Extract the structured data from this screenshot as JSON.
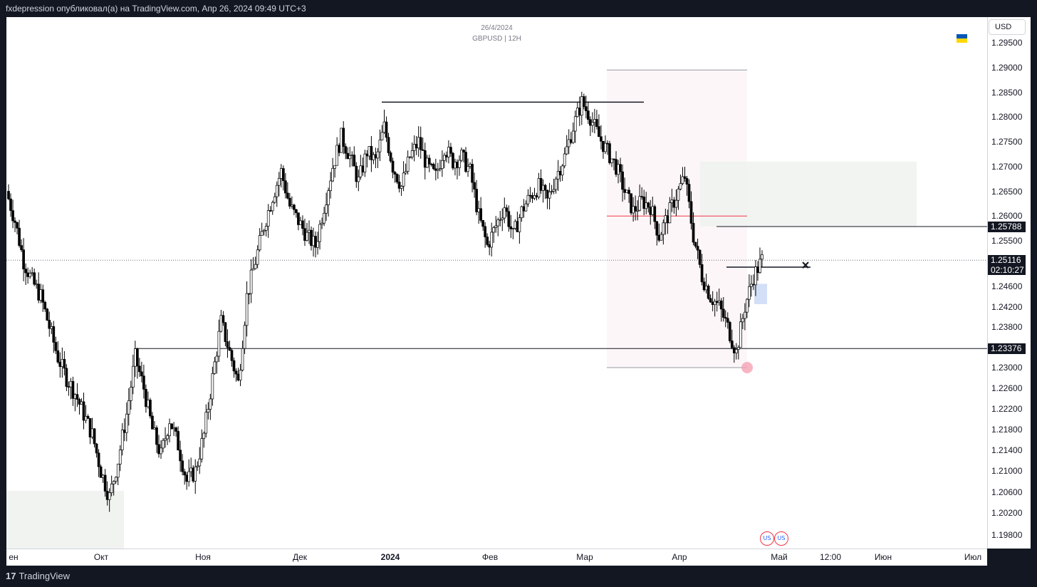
{
  "header": {
    "publication": "fxdepression опубликовал(а) на TradingView.com, Апр 26, 2024 09:49 UTC+3"
  },
  "chart_header": {
    "date": "26/4/2024",
    "symbol": "GBPUSD | 12H"
  },
  "price_axis": {
    "currency": "USD",
    "ticks": [
      "1.29500",
      "1.29000",
      "1.28500",
      "1.28000",
      "1.27500",
      "1.27000",
      "1.26500",
      "1.26000",
      "1.25500",
      "1.24600",
      "1.24200",
      "1.23800",
      "1.23000",
      "1.22600",
      "1.22200",
      "1.21800",
      "1.21400",
      "1.21000",
      "1.20600",
      "1.20200",
      "1.19800"
    ],
    "labels": [
      {
        "name": "level-high",
        "value": "1.25788"
      },
      {
        "name": "current-price",
        "value": "1.25116"
      },
      {
        "name": "level-low",
        "value": "1.23376"
      }
    ],
    "countdown": "02:10:27"
  },
  "time_axis": {
    "ticks": [
      "ен",
      "Окт",
      "Ноя",
      "Дек",
      "2024",
      "Фев",
      "Мар",
      "Апр",
      "Май",
      "12:00",
      "Июн",
      "Июл"
    ]
  },
  "events": [
    "US",
    "US"
  ],
  "footer": {
    "logo_mark": "17",
    "logo_text": "TradingView"
  },
  "chart_data": {
    "type": "candlestick",
    "symbol": "GBPUSD",
    "interval": "12H",
    "y_scale": "piecewise",
    "ylim": [
      1.194,
      1.2995
    ],
    "x_ticks": [
      "ен",
      "Окт",
      "Ноя",
      "Дек",
      "2024",
      "Фев",
      "Мар",
      "Апр",
      "Май",
      "12:00",
      "Июн",
      "Июл"
    ],
    "ohlc_trace": [
      [
        "Sep",
        1.265
      ],
      [
        "Sep",
        1.259
      ],
      [
        "Sep",
        1.251
      ],
      [
        "Sep",
        1.247
      ],
      [
        "Sep",
        1.244
      ],
      [
        "Sep",
        1.238
      ],
      [
        "Sep",
        1.232
      ],
      [
        "Sep",
        1.228
      ],
      [
        "Sep",
        1.225
      ],
      [
        "Sep",
        1.221
      ],
      [
        "Sep",
        1.217
      ],
      [
        "Oct",
        1.21
      ],
      [
        "Oct",
        1.205
      ],
      [
        "Oct",
        1.212
      ],
      [
        "Oct",
        1.221
      ],
      [
        "Oct",
        1.232
      ],
      [
        "Oct",
        1.226
      ],
      [
        "Oct",
        1.218
      ],
      [
        "Oct",
        1.213
      ],
      [
        "Oct",
        1.22
      ],
      [
        "Oct",
        1.215
      ],
      [
        "Oct",
        1.208
      ],
      [
        "Oct",
        1.21
      ],
      [
        "Nov",
        1.217
      ],
      [
        "Nov",
        1.228
      ],
      [
        "Nov",
        1.239
      ],
      [
        "Nov",
        1.233
      ],
      [
        "Nov",
        1.227
      ],
      [
        "Nov",
        1.244
      ],
      [
        "Nov",
        1.251
      ],
      [
        "Nov",
        1.258
      ],
      [
        "Nov",
        1.264
      ],
      [
        "Nov",
        1.269
      ],
      [
        "Nov",
        1.262
      ],
      [
        "Dec",
        1.259
      ],
      [
        "Dec",
        1.256
      ],
      [
        "Dec",
        1.254
      ],
      [
        "Dec",
        1.262
      ],
      [
        "Dec",
        1.27
      ],
      [
        "Dec",
        1.276
      ],
      [
        "Dec",
        1.272
      ],
      [
        "Dec",
        1.267
      ],
      [
        "Dec",
        1.273
      ],
      [
        "Dec",
        1.271
      ],
      [
        "Jan",
        1.278
      ],
      [
        "Jan",
        1.27
      ],
      [
        "Jan",
        1.266
      ],
      [
        "Jan",
        1.272
      ],
      [
        "Jan",
        1.275
      ],
      [
        "Jan",
        1.27
      ],
      [
        "Jan",
        1.268
      ],
      [
        "Jan",
        1.274
      ],
      [
        "Jan",
        1.271
      ],
      [
        "Jan",
        1.272
      ],
      [
        "Feb",
        1.269
      ],
      [
        "Feb",
        1.26
      ],
      [
        "Feb",
        1.254
      ],
      [
        "Feb",
        1.258
      ],
      [
        "Feb",
        1.262
      ],
      [
        "Feb",
        1.256
      ],
      [
        "Feb",
        1.261
      ],
      [
        "Feb",
        1.264
      ],
      [
        "Feb",
        1.266
      ],
      [
        "Feb",
        1.263
      ],
      [
        "Mar",
        1.268
      ],
      [
        "Mar",
        1.272
      ],
      [
        "Mar",
        1.278
      ],
      [
        "Mar",
        1.283
      ],
      [
        "Mar",
        1.28
      ],
      [
        "Mar",
        1.276
      ],
      [
        "Mar",
        1.273
      ],
      [
        "Mar",
        1.27
      ],
      [
        "Mar",
        1.265
      ],
      [
        "Mar",
        1.261
      ],
      [
        "Apr",
        1.263
      ],
      [
        "Apr",
        1.262
      ],
      [
        "Apr",
        1.256
      ],
      [
        "Apr",
        1.26
      ],
      [
        "Apr",
        1.264
      ],
      [
        "Apr",
        1.268
      ],
      [
        "Apr",
        1.256
      ],
      [
        "Apr",
        1.248
      ],
      [
        "Apr",
        1.244
      ],
      [
        "Apr",
        1.242
      ],
      [
        "Apr",
        1.238
      ],
      [
        "Apr",
        1.233
      ],
      [
        "Apr",
        1.242
      ],
      [
        "Apr",
        1.248
      ],
      [
        "Apr",
        1.2512
      ]
    ],
    "annotations": [
      {
        "type": "horizontal",
        "label": "1.25788"
      },
      {
        "type": "horizontal",
        "label": "1.23376"
      },
      {
        "type": "marker",
        "label": "×"
      }
    ],
    "colors": {
      "candle_up": "#ffffff",
      "candle_down": "#000000",
      "wick": "#000000",
      "red_level": "#f23645",
      "zone": "#f0f3f0",
      "pink_zone": "#fdf6f8",
      "fvg": "#c8d7f5",
      "pink_dot": "#f5a3b5"
    }
  }
}
